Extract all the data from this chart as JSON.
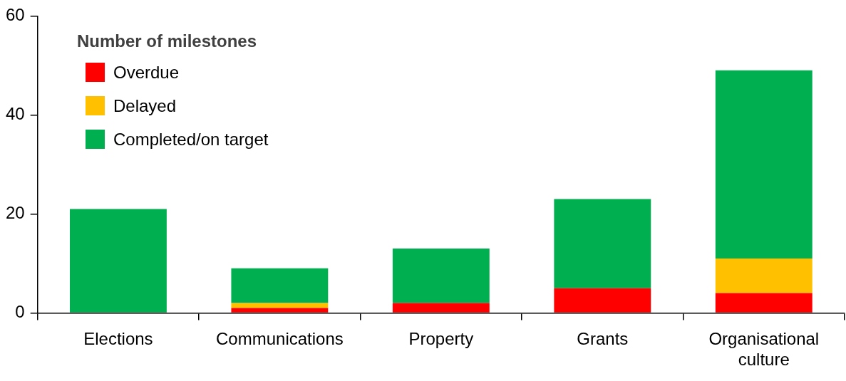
{
  "chart_data": {
    "type": "bar",
    "stacked": true,
    "legend_title": "Number of milestones",
    "legend": "top left",
    "categories": [
      "Elections",
      "Communications",
      "Property",
      "Grants",
      "Organisational culture"
    ],
    "series": [
      {
        "name": "Overdue",
        "color": "#ff0000",
        "values": [
          0,
          1,
          2,
          5,
          4
        ]
      },
      {
        "name": "Delayed",
        "color": "#ffc000",
        "values": [
          0,
          1,
          0,
          0,
          7
        ]
      },
      {
        "name": "Completed/on target",
        "color": "#00b050",
        "values": [
          21,
          7,
          11,
          18,
          38
        ]
      }
    ],
    "ylim": [
      0,
      60
    ],
    "yticks": [
      0,
      20,
      40,
      60
    ],
    "grid": false
  }
}
